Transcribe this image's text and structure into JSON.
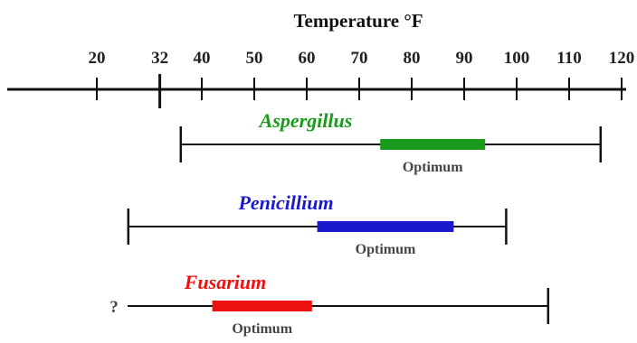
{
  "title": "Temperature °F",
  "axis": {
    "ticks": [
      20,
      32,
      40,
      50,
      60,
      70,
      80,
      90,
      100,
      110,
      120
    ],
    "marker": 32
  },
  "organisms": [
    {
      "name": "Aspergillus",
      "color": "#1a9a1a",
      "range": [
        36,
        116
      ],
      "optimum": [
        74,
        94
      ],
      "optimum_label": "Optimum",
      "min_unknown": false
    },
    {
      "name": "Penicillium",
      "color": "#1a1acc",
      "range": [
        26,
        98
      ],
      "optimum": [
        62,
        88
      ],
      "optimum_label": "Optimum",
      "min_unknown": false
    },
    {
      "name": "Fusarium",
      "color": "#ee1111",
      "range": [
        null,
        106
      ],
      "optimum": [
        42,
        61
      ],
      "optimum_label": "Optimum",
      "min_unknown": true,
      "unknown_symbol": "?"
    }
  ]
}
